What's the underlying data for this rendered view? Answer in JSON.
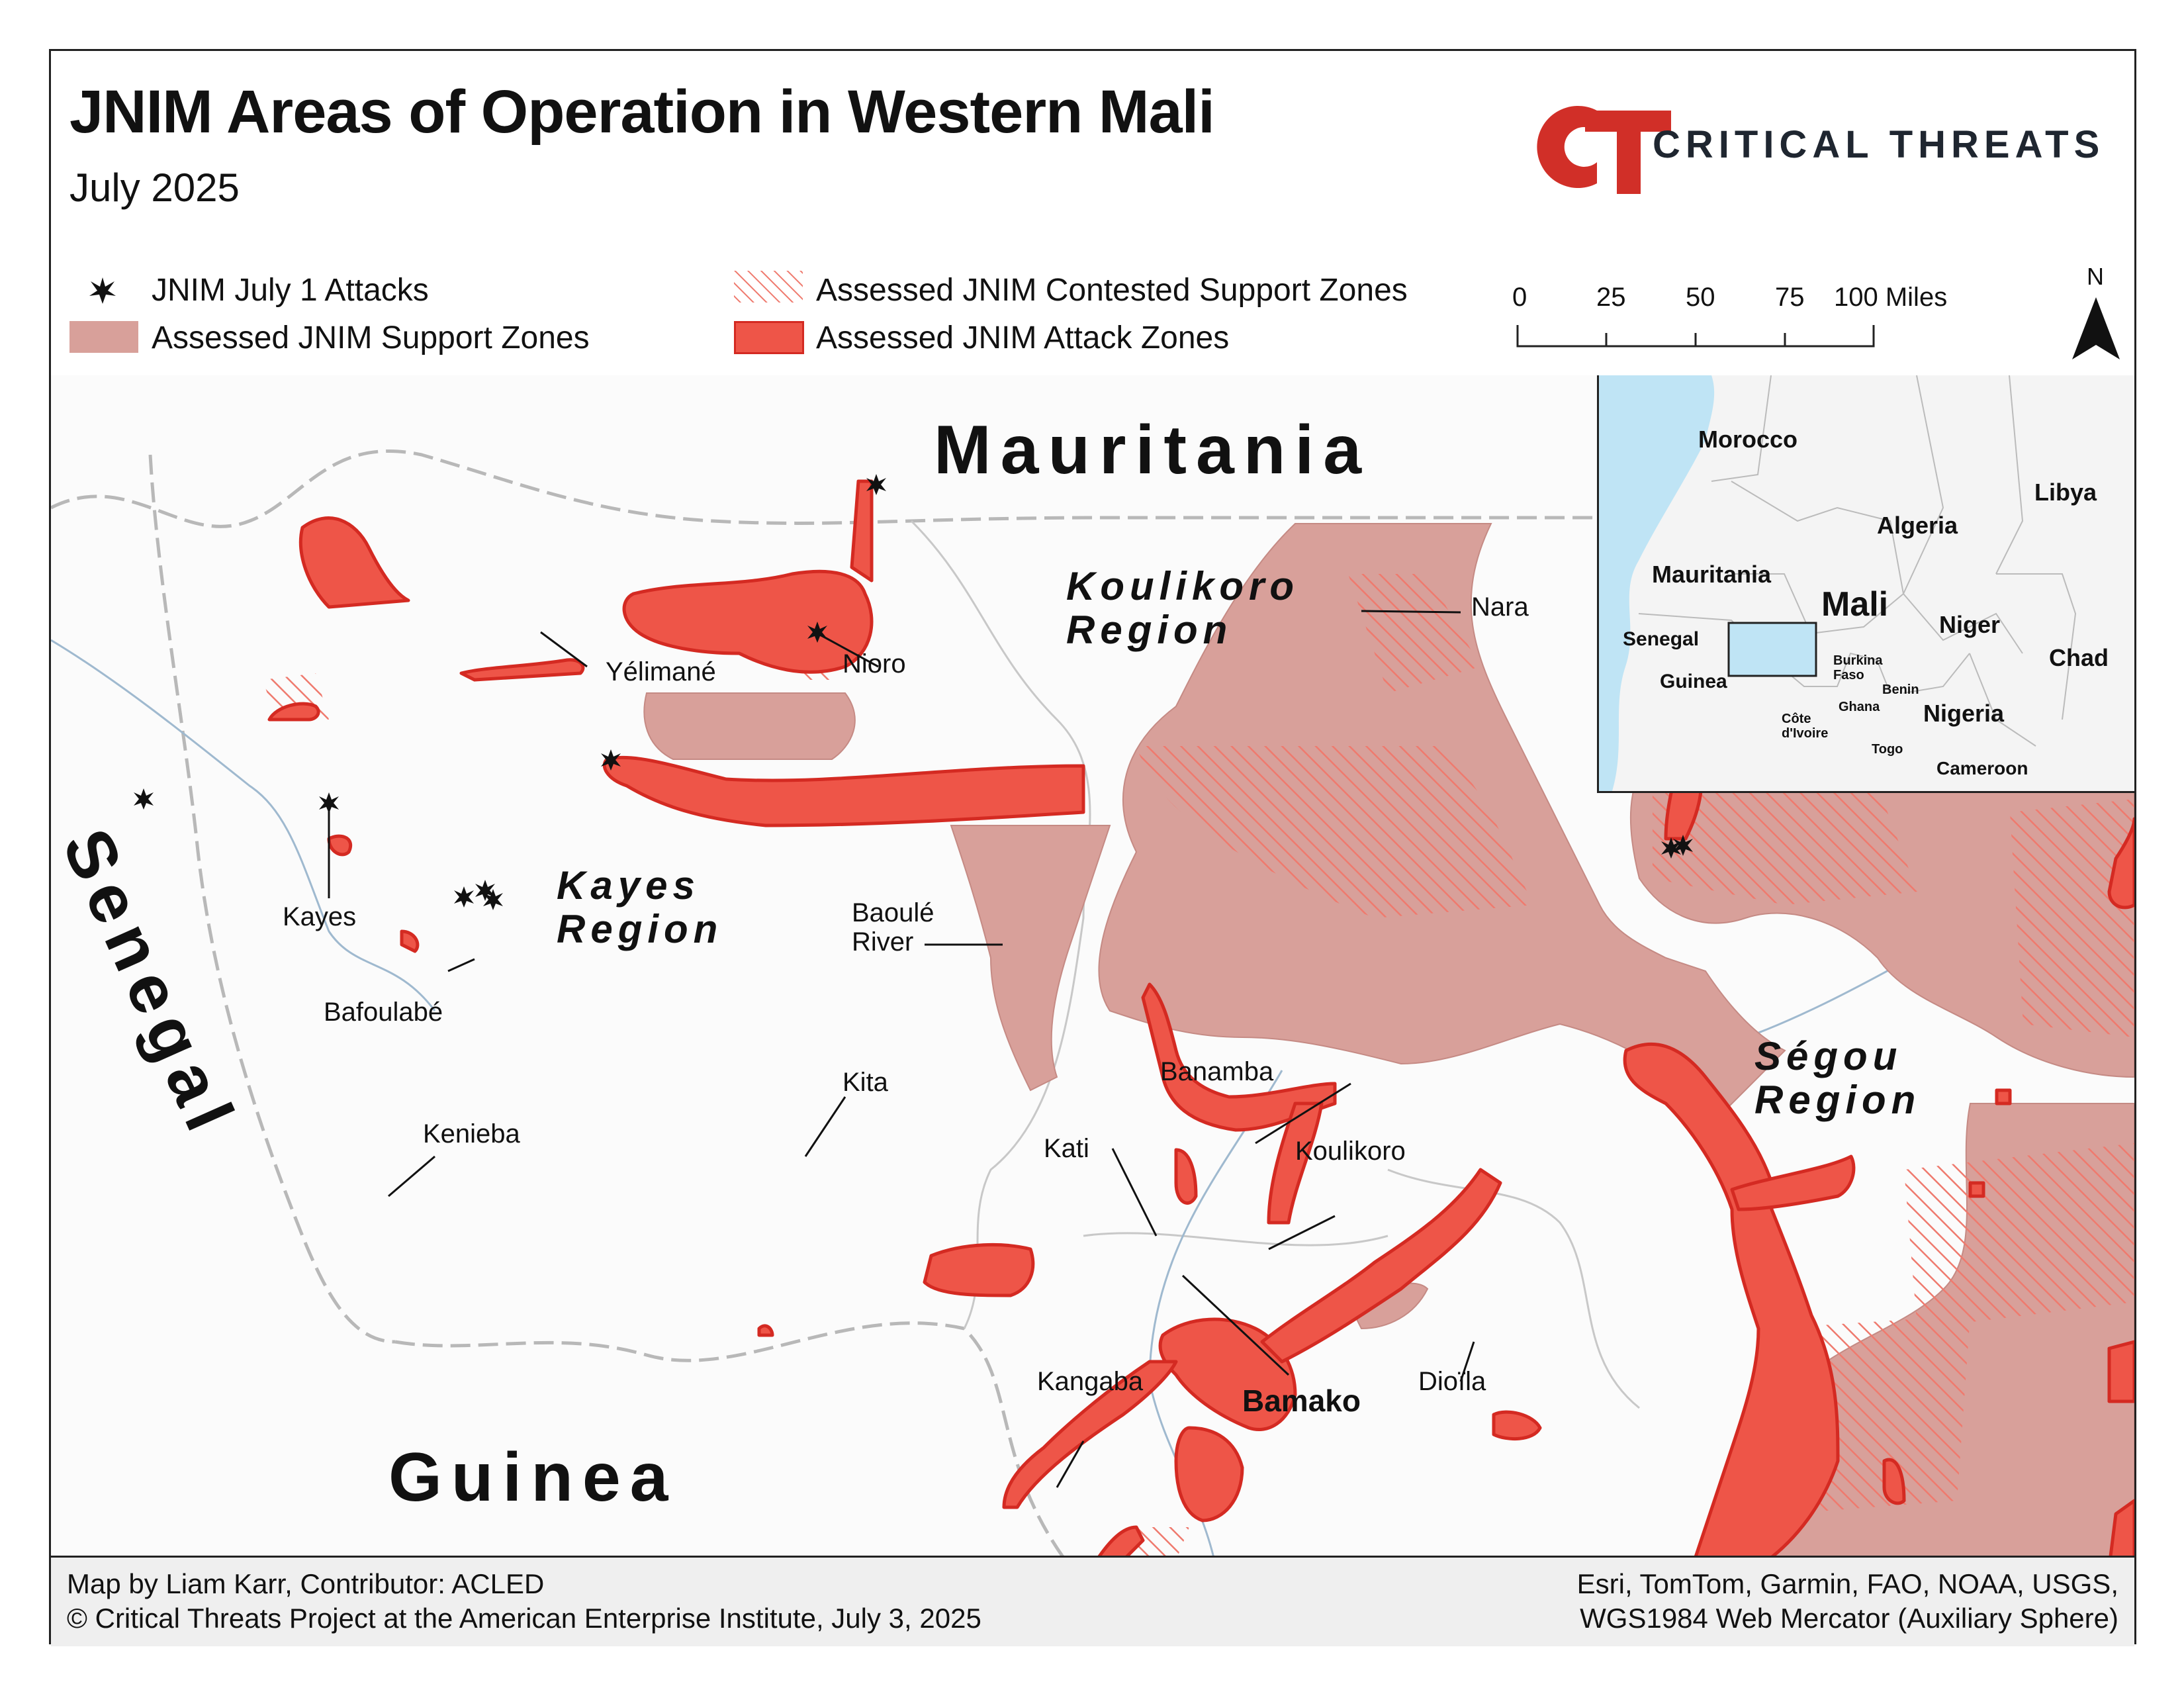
{
  "header": {
    "title": "JNIM Areas of Operation in Western Mali",
    "subtitle": "July 2025",
    "logo_mark": "CT",
    "logo_text": "CRITICAL THREATS"
  },
  "legend": {
    "attacks": "JNIM July 1 Attacks",
    "support_zones": "Assessed JNIM Support Zones",
    "contested_zones": "Assessed JNIM Contested Support Zones",
    "attack_zones": "Assessed JNIM Attack Zones"
  },
  "scale_bar": {
    "ticks": [
      "0",
      "25",
      "50",
      "75",
      "100 Miles"
    ]
  },
  "north_arrow": {
    "label": "N"
  },
  "map": {
    "countries": {
      "mauritania": "Mauritania",
      "senegal": "Senegal",
      "guinea": "Guinea"
    },
    "regions": {
      "koulikoro": [
        "Koulikoro",
        "Region"
      ],
      "kayes": [
        "Kayes",
        "Region"
      ],
      "segou": [
        "Ségou",
        "Region"
      ]
    },
    "places": {
      "nara": "Nara",
      "yelimane": "Yélimané",
      "nioro": "Nioro",
      "kayes": "Kayes",
      "bafoulabe": "Bafoulabé",
      "baoule_river": [
        "Baoulé",
        "River"
      ],
      "kita": "Kita",
      "kenieba": "Kenieba",
      "banamba": "Banamba",
      "kati": "Kati",
      "koulikoro": "Koulikoro",
      "bamako": "Bamako",
      "kangaba": "Kangaba",
      "dioila": "Dioïla"
    }
  },
  "inset": {
    "labels": {
      "morocco": "Morocco",
      "libya": "Libya",
      "algeria": "Algeria",
      "mauritania": "Mauritania",
      "mali": "Mali",
      "niger": "Niger",
      "senegal": "Senegal",
      "chad": "Chad",
      "burkina": [
        "Burkina",
        "Faso"
      ],
      "guinea": "Guinea",
      "benin": "Benin",
      "ghana": "Ghana",
      "nigeria": "Nigeria",
      "cote": [
        "Côte",
        "d'Ivoire"
      ],
      "togo": "Togo",
      "cameroon": "Cameroon"
    }
  },
  "footer": {
    "credit": "Map by Liam Karr, Contributor: ACLED",
    "copyright": "© Critical Threats Project at the American Enterprise Institute, July 3, 2025",
    "sources": "Esri, TomTom, Garmin, FAO, NOAA, USGS,",
    "projection": "WGS1984 Web Mercator (Auxiliary Sphere)"
  },
  "colors": {
    "support_zone": "#d8a09a",
    "attack_zone": "#ee5548",
    "attack_zone_outline": "#d42a22",
    "contested_hatch": "#ef7a6e",
    "inset_water": "#bfe4f5",
    "brand_red": "#d12f28",
    "brand_dark": "#1f2630"
  }
}
